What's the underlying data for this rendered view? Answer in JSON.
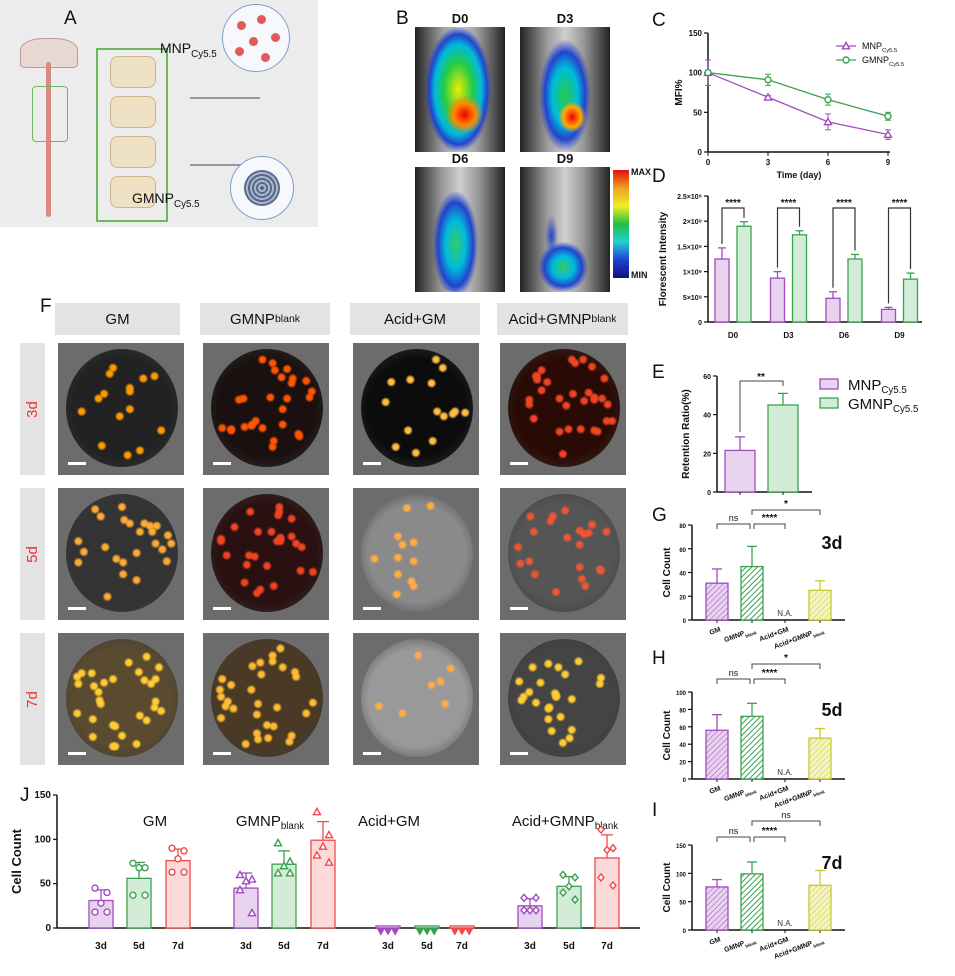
{
  "panel_labels": {
    "A": "A",
    "B": "B",
    "C": "C",
    "D": "D",
    "E": "E",
    "F": "F",
    "G": "G",
    "H": "H",
    "I": "I",
    "J": "J"
  },
  "panelA": {
    "mnp_label": "MNP",
    "mnp_sub": "Cy5.5",
    "gmnp_label": "GMNP",
    "gmnp_sub": "Cy5.5"
  },
  "panelB": {
    "days": [
      "D0",
      "D3",
      "D6",
      "D9"
    ],
    "colorbar_max": "MAX",
    "colorbar_min": "MIN"
  },
  "panelF": {
    "columns": [
      {
        "base": "GM",
        "sub": ""
      },
      {
        "base": "GMNP",
        "sub": "blank"
      },
      {
        "base": "Acid+GM",
        "sub": ""
      },
      {
        "base": "Acid+GMNP",
        "sub": "blank"
      }
    ],
    "rows": [
      "3d",
      "5d",
      "7d"
    ]
  },
  "colors": {
    "purple": "#a04cc0",
    "purple_fill": "#e8d3ee",
    "green": "#3aa24e",
    "green_fill": "#d3ecd7",
    "red": "#f04a4a",
    "red_fill": "#fcdada",
    "yellow": "#c8c832",
    "yellow_fill": "#f4f4c2"
  },
  "chart_data": [
    {
      "id": "C",
      "type": "line",
      "xlabel": "Time (day)",
      "ylabel": "MFI%",
      "x": [
        0,
        3,
        6,
        9
      ],
      "xlim": [
        0,
        9
      ],
      "ylim": [
        0,
        150
      ],
      "yticks": [
        0,
        50,
        100,
        150
      ],
      "legend_position": "top-right",
      "series": [
        {
          "name": "MNP",
          "sub": "Cy5.5",
          "marker": "triangle",
          "values": [
            100,
            69,
            38,
            22
          ],
          "errors": [
            16,
            2,
            10,
            6
          ]
        },
        {
          "name": "GMNP",
          "sub": "Cy5.5",
          "marker": "circle",
          "values": [
            100,
            91,
            66,
            45
          ],
          "errors": [
            3,
            7,
            7,
            5
          ]
        }
      ]
    },
    {
      "id": "D",
      "type": "bar",
      "ylabel": "Florescent Intensity",
      "categories": [
        "D0",
        "D3",
        "D6",
        "D9"
      ],
      "ylim": [
        0,
        2500000000
      ],
      "yticks": [
        0,
        500000000,
        1000000000,
        1500000000,
        2000000000,
        2500000000
      ],
      "ytick_labels": [
        "0",
        "5×10⁸",
        "1×10⁹",
        "1.5×10⁹",
        "2×10⁹",
        "2.5×10⁹"
      ],
      "series": [
        {
          "name": "MNP",
          "sub": "Cy5.5",
          "values": [
            1250000000,
            870000000,
            470000000,
            250000000
          ],
          "errors": [
            220000000,
            130000000,
            130000000,
            40000000
          ]
        },
        {
          "name": "GMNP",
          "sub": "Cy5.5",
          "values": [
            1900000000,
            1730000000,
            1250000000,
            850000000
          ],
          "errors": [
            90000000,
            80000000,
            90000000,
            120000000
          ]
        }
      ],
      "significance": [
        "****",
        "****",
        "****",
        "****"
      ]
    },
    {
      "id": "E",
      "type": "bar",
      "ylabel": "Retention Ratio(%)",
      "categories": [
        "MNP",
        "GMNP"
      ],
      "ylim": [
        0,
        60
      ],
      "yticks": [
        0,
        20,
        40,
        60
      ],
      "values": [
        21.5,
        45
      ],
      "errors": [
        7,
        6
      ],
      "significance": "**",
      "legend_position": "right",
      "legend": [
        {
          "name": "MNP",
          "sub": "Cy5.5"
        },
        {
          "name": "GMNP",
          "sub": "Cy5.5"
        }
      ]
    },
    {
      "id": "G",
      "type": "bar",
      "title": "3d",
      "ylabel": "Cell Count",
      "categories": [
        "GM",
        "GMNP",
        "Acid+GM",
        "Acid+GMNP"
      ],
      "category_subs": [
        "",
        "blank",
        "",
        "blank"
      ],
      "ylim": [
        0,
        80
      ],
      "yticks": [
        0,
        20,
        40,
        60,
        80
      ],
      "values": [
        31,
        45,
        0,
        25
      ],
      "errors": [
        12,
        17,
        0,
        8
      ],
      "na_label": "N.A.",
      "significance": [
        {
          "from": 1,
          "to": 0,
          "label": "ns"
        },
        {
          "from": 1,
          "to": 2,
          "label": "****"
        },
        {
          "from": 1,
          "to": 3,
          "label": "*"
        }
      ]
    },
    {
      "id": "H",
      "type": "bar",
      "title": "5d",
      "ylabel": "Cell Count",
      "categories": [
        "GM",
        "GMNP",
        "Acid+GM",
        "Acid+GMNP"
      ],
      "category_subs": [
        "",
        "blank",
        "",
        "blank"
      ],
      "ylim": [
        0,
        100
      ],
      "yticks": [
        0,
        20,
        40,
        60,
        80,
        100
      ],
      "values": [
        56,
        72,
        0,
        47
      ],
      "errors": [
        18,
        15,
        0,
        11
      ],
      "na_label": "N.A.",
      "significance": [
        {
          "from": 1,
          "to": 0,
          "label": "ns"
        },
        {
          "from": 1,
          "to": 2,
          "label": "****"
        },
        {
          "from": 1,
          "to": 3,
          "label": "*"
        }
      ]
    },
    {
      "id": "I",
      "type": "bar",
      "title": "7d",
      "ylabel": "Cell Count",
      "categories": [
        "GM",
        "GMNP",
        "Acid+GM",
        "Acid+GMNP"
      ],
      "category_subs": [
        "",
        "blank",
        "",
        "blank"
      ],
      "ylim": [
        0,
        150
      ],
      "yticks": [
        0,
        50,
        100,
        150
      ],
      "values": [
        76,
        99,
        0,
        79
      ],
      "errors": [
        13,
        21,
        0,
        26
      ],
      "na_label": "N.A.",
      "significance": [
        {
          "from": 1,
          "to": 0,
          "label": "ns"
        },
        {
          "from": 1,
          "to": 2,
          "label": "****"
        },
        {
          "from": 1,
          "to": 3,
          "label": "ns"
        }
      ]
    },
    {
      "id": "J",
      "type": "bar",
      "ylabel": "Cell Count",
      "ylim": [
        0,
        150
      ],
      "yticks": [
        0,
        50,
        100,
        150
      ],
      "groups": [
        {
          "name": "GM",
          "sub": "",
          "marker": "circle",
          "bars": [
            {
              "day": "3d",
              "value": 31,
              "error": 12,
              "points": [
                45,
                40,
                28,
                18,
                18
              ]
            },
            {
              "day": "5d",
              "value": 56,
              "error": 18,
              "points": [
                73,
                68,
                68,
                37,
                37
              ]
            },
            {
              "day": "7d",
              "value": 76,
              "error": 13,
              "points": [
                90,
                87,
                78,
                63,
                63
              ]
            }
          ]
        },
        {
          "name": "GMNP",
          "sub": "blank",
          "marker": "triangle",
          "bars": [
            {
              "day": "3d",
              "value": 45,
              "error": 17,
              "points": [
                60,
                55,
                53,
                43,
                17
              ]
            },
            {
              "day": "5d",
              "value": 72,
              "error": 15,
              "points": [
                96,
                75,
                70,
                62,
                62
              ]
            },
            {
              "day": "7d",
              "value": 99,
              "error": 21,
              "points": [
                131,
                105,
                92,
                82,
                74
              ]
            }
          ]
        },
        {
          "name": "Acid+GM",
          "sub": "",
          "marker": "triangle-down",
          "bars": [
            {
              "day": "3d",
              "value": 0,
              "error": 0,
              "points": [
                0,
                0,
                0,
                0,
                0
              ]
            },
            {
              "day": "5d",
              "value": 0,
              "error": 0,
              "points": [
                0,
                0,
                0,
                0,
                0
              ]
            },
            {
              "day": "7d",
              "value": 0,
              "error": 0,
              "points": [
                0,
                0,
                0,
                0,
                0
              ]
            }
          ]
        },
        {
          "name": "Acid+GMNP",
          "sub": "blank",
          "marker": "diamond",
          "bars": [
            {
              "day": "3d",
              "value": 25,
              "error": 8,
              "points": [
                34,
                34,
                20,
                20,
                20
              ]
            },
            {
              "day": "5d",
              "value": 47,
              "error": 11,
              "points": [
                60,
                57,
                47,
                40,
                32
              ]
            },
            {
              "day": "7d",
              "value": 79,
              "error": 26,
              "points": [
                111,
                90,
                88,
                57,
                48
              ]
            }
          ]
        }
      ]
    }
  ]
}
